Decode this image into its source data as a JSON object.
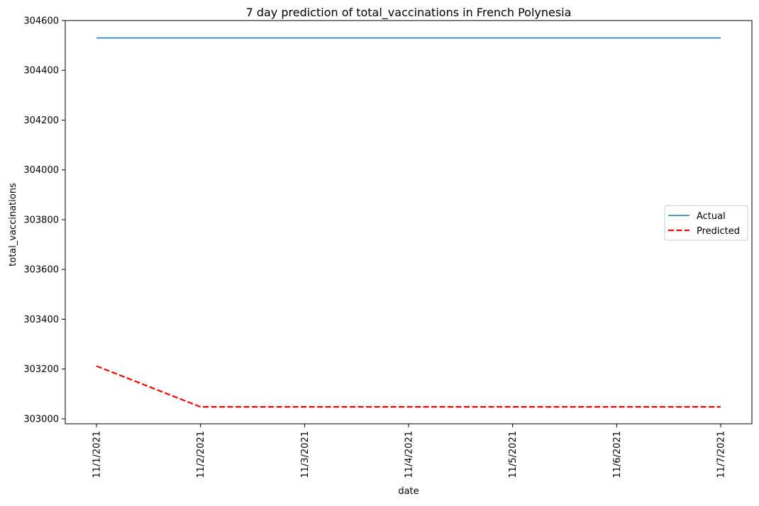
{
  "chart_data": {
    "type": "line",
    "title": "7 day prediction of total_vaccinations in French Polynesia",
    "xlabel": "date",
    "ylabel": "total_vaccinations",
    "categories": [
      "11/1/2021",
      "11/2/2021",
      "11/3/2021",
      "11/4/2021",
      "11/5/2021",
      "11/6/2021",
      "11/7/2021"
    ],
    "ylim": [
      302980,
      304600
    ],
    "yticks": [
      303000,
      303200,
      303400,
      303600,
      303800,
      304000,
      304200,
      304400,
      304600
    ],
    "grid": false,
    "legend_position": "center-right",
    "series": [
      {
        "name": "Actual",
        "color": "#1f77b4",
        "style": "solid",
        "values": [
          304530,
          304530,
          304530,
          304530,
          304530,
          304530,
          304530
        ]
      },
      {
        "name": "Predicted",
        "color": "#ff0000",
        "style": "dashed",
        "values": [
          303212,
          303048,
          303048,
          303048,
          303048,
          303048,
          303048
        ]
      }
    ]
  }
}
